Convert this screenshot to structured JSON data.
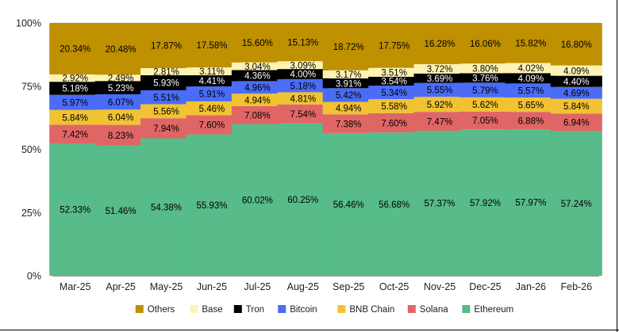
{
  "chart_data": {
    "type": "bar",
    "stacked": true,
    "normalized": true,
    "categories": [
      "Mar-25",
      "Apr-25",
      "May-25",
      "Jun-25",
      "Jul-25",
      "Aug-25",
      "Sep-25",
      "Oct-25",
      "Nov-25",
      "Dec-25",
      "Jan-26",
      "Feb-26"
    ],
    "series": [
      {
        "name": "Ethereum",
        "color": "#57bb8a",
        "values": [
          52.33,
          51.46,
          54.38,
          55.93,
          60.02,
          60.25,
          56.46,
          56.68,
          57.37,
          57.92,
          57.97,
          57.24
        ],
        "labels": [
          "52.33%",
          "51.46%",
          "54.38%",
          "55.93%",
          "60.02%",
          "60.25%",
          "56.46%",
          "56.68%",
          "57.37%",
          "57.92%",
          "57.97%",
          "57.24%"
        ]
      },
      {
        "name": "Solana",
        "color": "#e06666",
        "values": [
          7.42,
          8.23,
          7.94,
          7.6,
          7.08,
          7.54,
          7.38,
          7.6,
          7.47,
          7.05,
          6.88,
          6.94
        ],
        "labels": [
          "7.42%",
          "8.23%",
          "7.94%",
          "7.60%",
          "7.08%",
          "7.54%",
          "7.38%",
          "7.60%",
          "7.47%",
          "7.05%",
          "6.88%",
          "6.94%"
        ]
      },
      {
        "name": "BNB Chain",
        "color": "#f1c232",
        "values": [
          5.84,
          6.04,
          5.56,
          5.46,
          4.94,
          4.81,
          4.94,
          5.58,
          5.92,
          5.62,
          5.65,
          5.84
        ],
        "labels": [
          "5.84%",
          "6.04%",
          "5.56%",
          "5.46%",
          "4.94%",
          "4.81%",
          "4.94%",
          "5.58%",
          "5.92%",
          "5.62%",
          "5.65%",
          "5.84%"
        ]
      },
      {
        "name": "Bitcoin",
        "color": "#4a6cf7",
        "values": [
          5.97,
          6.07,
          5.51,
          5.91,
          4.96,
          5.18,
          5.42,
          5.34,
          5.55,
          5.79,
          5.57,
          4.69
        ],
        "labels": [
          "5.97%",
          "6.07%",
          "5.51%",
          "5.91%",
          "4.96%",
          "5.18%",
          "5.42%",
          "5.34%",
          "5.55%",
          "5.79%",
          "5.57%",
          "4.69%"
        ]
      },
      {
        "name": "Tron",
        "color": "#000000",
        "values": [
          5.18,
          5.23,
          5.93,
          4.41,
          4.36,
          4.0,
          3.91,
          3.54,
          3.69,
          3.76,
          4.09,
          4.4
        ],
        "labels": [
          "5.18%",
          "5.23%",
          "5.93%",
          "4.41%",
          "4.36%",
          "4.00%",
          "3.91%",
          "3.54%",
          "3.69%",
          "3.76%",
          "4.09%",
          "4.40%"
        ]
      },
      {
        "name": "Base",
        "color": "#fff2b3",
        "values": [
          2.92,
          2.49,
          2.81,
          3.11,
          3.04,
          3.09,
          3.17,
          3.51,
          3.72,
          3.8,
          4.02,
          4.09
        ],
        "labels": [
          "2.92%",
          "2.49%",
          "2.81%",
          "3.11%",
          "3.04%",
          "3.09%",
          "3.17%",
          "3.51%",
          "3.72%",
          "3.80%",
          "4.02%",
          "4.09%"
        ]
      },
      {
        "name": "Others",
        "color": "#bf9000",
        "values": [
          20.34,
          20.48,
          17.87,
          17.58,
          15.6,
          15.13,
          18.72,
          17.75,
          16.28,
          16.06,
          15.82,
          16.8
        ],
        "labels": [
          "20.34%",
          "20.48%",
          "17.87%",
          "17.58%",
          "15.60%",
          "15.13%",
          "18.72%",
          "17.75%",
          "16.28%",
          "16.06%",
          "15.82%",
          "16.80%"
        ]
      }
    ],
    "yticks": [
      "0%",
      "25%",
      "50%",
      "75%",
      "100%"
    ],
    "ytick_values": [
      0,
      25,
      50,
      75,
      100
    ],
    "ylim": [
      0,
      100
    ],
    "legend_order": [
      "Others",
      "Base",
      "Tron",
      "Bitcoin",
      "BNB Chain",
      "Solana",
      "Ethereum"
    ],
    "legend_placement": "bottom",
    "grid": true,
    "title": "",
    "xlabel": "",
    "ylabel": ""
  }
}
